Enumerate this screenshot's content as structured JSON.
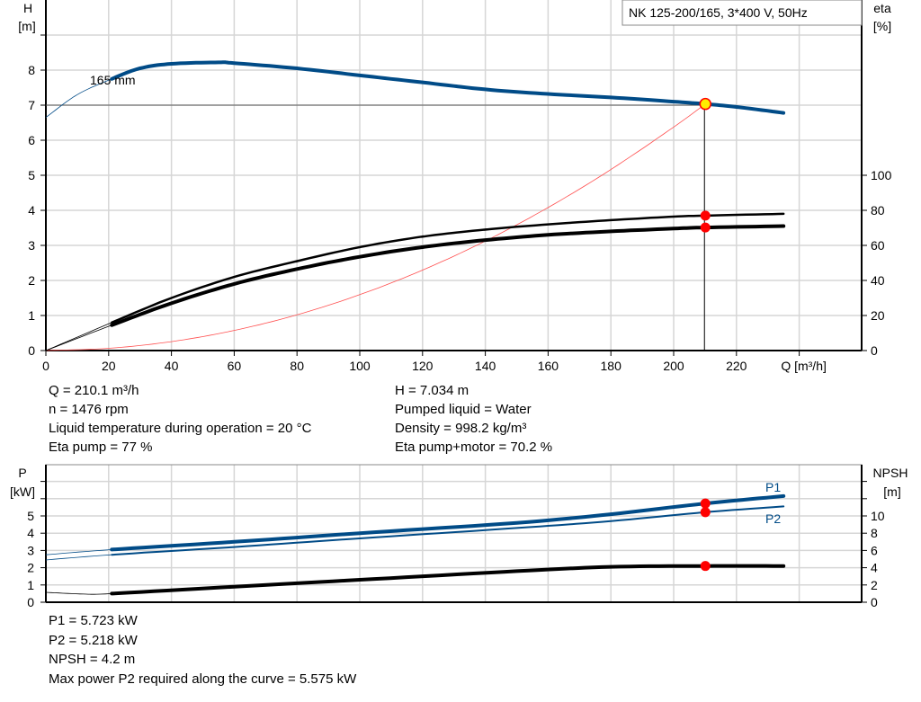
{
  "chart_data": [
    {
      "type": "line",
      "title": "NK 125-200/165, 3*400 V, 50Hz",
      "xlabel": "Q [m³/h]",
      "ylabel_left": [
        "H",
        "[m]"
      ],
      "ylabel_right": [
        "eta",
        "[%]"
      ],
      "xlim": [
        0,
        260
      ],
      "ylim_left": [
        0,
        9
      ],
      "ylim_right_ticks": [
        0,
        100
      ],
      "x_ticks": [
        "0",
        "20",
        "40",
        "60",
        "80",
        "100",
        "120",
        "140",
        "160",
        "180",
        "200",
        "220"
      ],
      "y_ticks_left": [
        "0",
        "1",
        "2",
        "3",
        "4",
        "5",
        "6",
        "7",
        "8"
      ],
      "y_ticks_right": [
        "0",
        "20",
        "40",
        "60",
        "80",
        "100"
      ],
      "grid": true,
      "annotation": "165 mm",
      "series": [
        {
          "key": "H",
          "axis": "left",
          "color": "#004B87",
          "x": [
            0,
            10,
            21,
            30,
            40,
            55,
            60,
            80,
            100,
            120,
            140,
            160,
            180,
            200,
            210.1,
            220,
            235
          ],
          "values": [
            6.65,
            7.3,
            7.75,
            8.05,
            8.18,
            8.22,
            8.2,
            8.05,
            7.85,
            7.65,
            7.45,
            7.32,
            7.22,
            7.1,
            7.034,
            6.95,
            6.78
          ]
        },
        {
          "key": "eta_pump",
          "axis": "right",
          "color": "#000000",
          "x": [
            0,
            21,
            40,
            60,
            80,
            100,
            120,
            140,
            160,
            180,
            200,
            210.1,
            235
          ],
          "values": [
            0,
            16,
            30,
            42,
            51,
            59,
            65,
            69,
            72,
            74.4,
            76.4,
            77,
            78
          ]
        },
        {
          "key": "eta_pump_motor",
          "axis": "right",
          "color": "#000000",
          "x": [
            0,
            21,
            40,
            60,
            80,
            100,
            120,
            140,
            160,
            180,
            200,
            210.1,
            235
          ],
          "values": [
            0,
            14.5,
            27,
            38,
            46.5,
            53.5,
            59,
            63,
            66,
            68,
            69.6,
            70.2,
            71
          ]
        },
        {
          "key": "system_curve",
          "axis": "left",
          "color": "#FF4040",
          "x": [
            0,
            20,
            40,
            60,
            80,
            100,
            120,
            140,
            160,
            180,
            200,
            210.1
          ],
          "values": [
            0,
            0.064,
            0.255,
            0.574,
            1.02,
            1.594,
            2.295,
            3.124,
            4.08,
            5.164,
            6.375,
            7.034
          ]
        }
      ],
      "operating_point": {
        "Q": 210.1,
        "H": 7.034,
        "eta_pump": 77,
        "eta_pump_motor": 70.2
      }
    },
    {
      "type": "line",
      "xlim": [
        0,
        260
      ],
      "ylabel_left": [
        "P",
        "[kW]"
      ],
      "ylabel_right": [
        "NPSH",
        "[m]"
      ],
      "ylim_left": [
        0,
        8
      ],
      "ylim_right": [
        0,
        16
      ],
      "y_ticks_left": [
        "0",
        "1",
        "2",
        "3",
        "4",
        "5"
      ],
      "y_ticks_right": [
        "0",
        "2",
        "4",
        "6",
        "8",
        "10"
      ],
      "grid": true,
      "series": [
        {
          "key": "P1",
          "name": "P1",
          "axis": "left",
          "color": "#004B87",
          "x": [
            0,
            21,
            60,
            100,
            150,
            180,
            210.1,
            235
          ],
          "values": [
            2.75,
            3.05,
            3.5,
            4.0,
            4.6,
            5.1,
            5.723,
            6.15
          ]
        },
        {
          "key": "P2",
          "name": "P2",
          "axis": "left",
          "color": "#004B87",
          "x": [
            0,
            21,
            60,
            100,
            150,
            180,
            210.1,
            235
          ],
          "values": [
            2.45,
            2.75,
            3.2,
            3.7,
            4.3,
            4.7,
            5.218,
            5.55
          ]
        },
        {
          "key": "NPSH",
          "axis": "right",
          "color": "#000000",
          "x": [
            0,
            12,
            21,
            60,
            100,
            150,
            180,
            210.1,
            235
          ],
          "values": [
            1.15,
            0.95,
            1.0,
            1.8,
            2.6,
            3.6,
            4.1,
            4.2,
            4.2
          ]
        }
      ],
      "operating_point": {
        "Q": 210.1,
        "P1": 5.723,
        "P2": 5.218,
        "NPSH": 4.2
      }
    }
  ],
  "info_top": {
    "q": "Q = 210.1 m³/h",
    "n": "n = 1476 rpm",
    "temp": "Liquid temperature during operation = 20 °C",
    "eta_pump": "Eta pump = 77 %",
    "h": "H = 7.034 m",
    "liquid": "Pumped liquid = Water",
    "density": "Density = 998.2 kg/m³",
    "eta_pm": "Eta pump+motor = 70.2 %"
  },
  "info_bottom": {
    "p1": "P1 = 5.723 kW",
    "p2": "P2 = 5.218 kW",
    "npsh": "NPSH = 4.2 m",
    "max": "Max power P2 required along the curve = 5.575 kW"
  }
}
